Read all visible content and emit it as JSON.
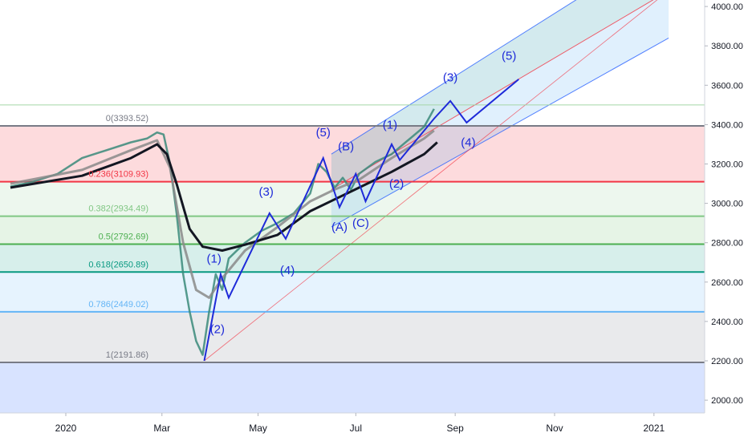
{
  "chart_data": {
    "type": "line",
    "title": "",
    "xlabel": "",
    "ylabel": "",
    "ylim": [
      1910,
      4065
    ],
    "x_ticks": [
      "2020",
      "Mar",
      "May",
      "Jul",
      "Sep",
      "Nov",
      "2021"
    ],
    "y_ticks": [
      "4000.00",
      "3800.00",
      "3600.00",
      "3400.00",
      "3200.00",
      "3000.00",
      "2800.00",
      "2600.00",
      "2400.00",
      "2200.00",
      "2000.00"
    ],
    "fib_levels": [
      {
        "label": "0(3393.52)",
        "value": 3393.52,
        "color": "#787b86"
      },
      {
        "label": "0.236(3109.93)",
        "value": 3109.93,
        "color": "#f23645"
      },
      {
        "label": "0.382(2934.49)",
        "value": 2934.49,
        "color": "#81c784"
      },
      {
        "label": "0.5(2792.69)",
        "value": 2792.69,
        "color": "#4caf50"
      },
      {
        "label": "0.618(2650.89)",
        "value": 2650.89,
        "color": "#089981"
      },
      {
        "label": "0.786(2449.02)",
        "value": 2449.02,
        "color": "#64b5f6"
      },
      {
        "label": "1(2191.86)",
        "value": 2191.86,
        "color": "#787b86"
      }
    ],
    "series": [
      {
        "values": [
          [
            -34,
            3085
          ],
          [
            -20,
            3110
          ],
          [
            -5,
            3150
          ],
          [
            10,
            3230
          ],
          [
            25,
            3270
          ],
          [
            40,
            3310
          ],
          [
            50,
            3330
          ],
          [
            56,
            3360
          ],
          [
            60,
            3350
          ],
          [
            64,
            3200
          ],
          [
            68,
            2950
          ],
          [
            72,
            2640
          ],
          [
            76,
            2450
          ],
          [
            80,
            2300
          ],
          [
            84,
            2230
          ],
          [
            88,
            2450
          ],
          [
            92,
            2640
          ],
          [
            96,
            2560
          ],
          [
            100,
            2720
          ],
          [
            110,
            2800
          ],
          [
            120,
            2860
          ],
          [
            130,
            2900
          ],
          [
            140,
            2950
          ],
          [
            150,
            3050
          ],
          [
            155,
            3200
          ],
          [
            160,
            3160
          ],
          [
            165,
            3080
          ],
          [
            170,
            3130
          ],
          [
            175,
            3070
          ],
          [
            180,
            3150
          ],
          [
            190,
            3210
          ],
          [
            200,
            3250
          ],
          [
            210,
            3320
          ],
          [
            220,
            3390
          ],
          [
            226,
            3480
          ]
        ]
      },
      {
        "values": [
          [
            -34,
            3100
          ],
          [
            10,
            3170
          ],
          [
            40,
            3270
          ],
          [
            56,
            3320
          ],
          [
            64,
            3180
          ],
          [
            72,
            2800
          ],
          [
            80,
            2560
          ],
          [
            88,
            2520
          ],
          [
            96,
            2620
          ],
          [
            110,
            2760
          ],
          [
            130,
            2880
          ],
          [
            150,
            3010
          ],
          [
            165,
            3070
          ],
          [
            180,
            3120
          ],
          [
            200,
            3230
          ],
          [
            220,
            3330
          ],
          [
            226,
            3370
          ]
        ]
      },
      {
        "values": [
          [
            -34,
            3080
          ],
          [
            10,
            3140
          ],
          [
            40,
            3230
          ],
          [
            56,
            3300
          ],
          [
            62,
            3250
          ],
          [
            68,
            3100
          ],
          [
            76,
            2870
          ],
          [
            84,
            2780
          ],
          [
            96,
            2760
          ],
          [
            110,
            2790
          ],
          [
            130,
            2840
          ],
          [
            150,
            2960
          ],
          [
            165,
            3020
          ],
          [
            180,
            3080
          ],
          [
            200,
            3160
          ],
          [
            220,
            3250
          ],
          [
            228,
            3310
          ]
        ]
      }
    ],
    "wave_path": [
      [
        85,
        2200
      ],
      [
        95,
        2640
      ],
      [
        100,
        2520
      ],
      [
        125,
        2950
      ],
      [
        135,
        2820
      ],
      [
        158,
        3230
      ],
      [
        168,
        2980
      ],
      [
        178,
        3150
      ],
      [
        184,
        3010
      ],
      [
        200,
        3300
      ],
      [
        205,
        3220
      ],
      [
        226,
        3430
      ],
      [
        236,
        3520
      ],
      [
        246,
        3410
      ],
      [
        278,
        3630
      ]
    ],
    "wave_labels": [
      {
        "text": "(1)",
        "x": 91,
        "y": 2700
      },
      {
        "text": "(2)",
        "x": 93,
        "y": 2340
      },
      {
        "text": "(3)",
        "x": 123,
        "y": 3040
      },
      {
        "text": "(4)",
        "x": 136,
        "y": 2640
      },
      {
        "text": "(5)",
        "x": 158,
        "y": 3340
      },
      {
        "text": "(B)",
        "x": 172,
        "y": 3270
      },
      {
        "text": "(A)",
        "x": 168,
        "y": 2860
      },
      {
        "text": "(C)",
        "x": 181,
        "y": 2880
      },
      {
        "text": "(1)",
        "x": 199,
        "y": 3380
      },
      {
        "text": "(2)",
        "x": 203,
        "y": 3080
      },
      {
        "text": "(3)",
        "x": 236,
        "y": 3620
      },
      {
        "text": "(4)",
        "x": 247,
        "y": 3290
      },
      {
        "text": "(5)",
        "x": 272,
        "y": 3730
      }
    ],
    "channel_lines": [
      {
        "from": [
          163,
          3250
        ],
        "to": [
          370,
          4330
        ],
        "color": "#2962ff"
      },
      {
        "from": [
          163,
          3070
        ],
        "to": [
          370,
          4080
        ],
        "color": "#f23645"
      },
      {
        "from": [
          163,
          2880
        ],
        "to": [
          370,
          3840
        ],
        "color": "#2962ff"
      }
    ]
  }
}
